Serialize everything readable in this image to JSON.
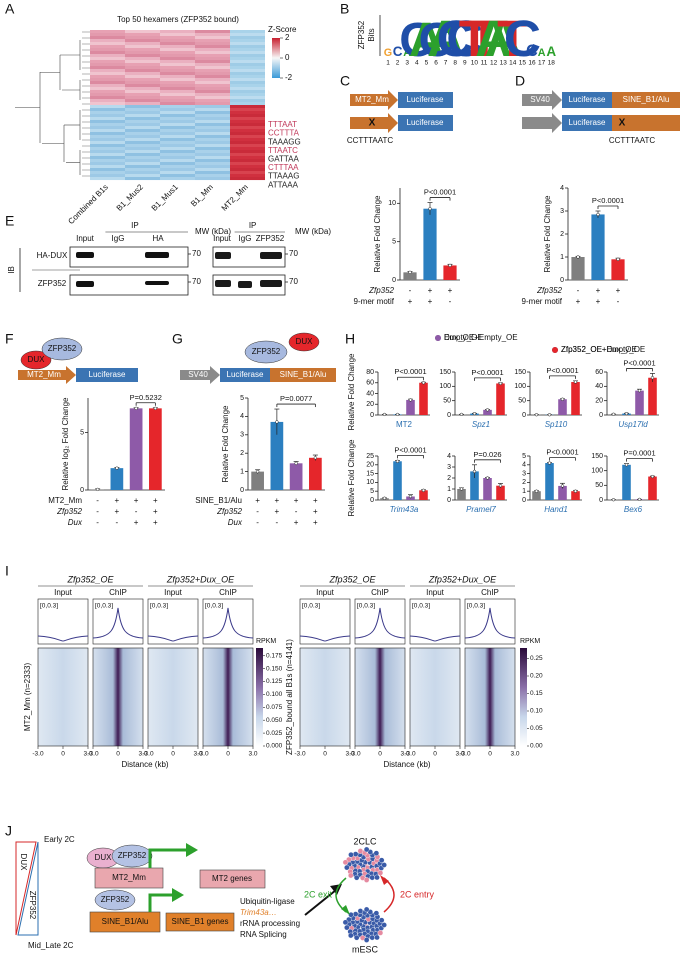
{
  "panel_labels": [
    "A",
    "B",
    "C",
    "D",
    "E",
    "F",
    "G",
    "H",
    "I",
    "J"
  ],
  "panel_a": {
    "title": "Top 50 hexamers (ZFP352 bound)",
    "scale_title": "Z-Score",
    "scale_ticks": [
      2,
      0,
      -2
    ],
    "columns": [
      "Combined B1s",
      "B1_Mus2",
      "B1_Mus1",
      "B1_Mm",
      "MT2_Mm"
    ],
    "hexamers": [
      {
        "text": "TTTAAT",
        "color": "#c0395a"
      },
      {
        "text": "CCTTTA",
        "color": "#c0395a"
      },
      {
        "text": "TAAAGG",
        "color": "#222222"
      },
      {
        "text": "TTAATC",
        "color": "#c0395a"
      },
      {
        "text": "GATTAA",
        "color": "#222222"
      },
      {
        "text": "CTTTAA",
        "color": "#c0395a"
      },
      {
        "text": "TTAAAG",
        "color": "#222222"
      },
      {
        "text": "ATTAAA",
        "color": "#222222"
      }
    ]
  },
  "panel_b": {
    "ylabel": "ZFP352",
    "unit": "Bits",
    "ylim": [
      0,
      2
    ],
    "letters": [
      "G",
      "C",
      "A",
      "C",
      "A",
      "C",
      "A",
      "C",
      "C",
      "T",
      "T",
      "A",
      "A",
      "T",
      "C",
      "C",
      "A",
      "A"
    ],
    "bits": [
      0.4,
      0.5,
      0.4,
      1.8,
      1.8,
      1.8,
      1.9,
      1.9,
      1.9,
      1.9,
      1.9,
      1.9,
      1.9,
      1.9,
      1.9,
      0.6,
      0.4,
      0.5
    ],
    "positions": [
      1,
      2,
      3,
      4,
      5,
      6,
      7,
      8,
      9,
      10,
      11,
      12,
      13,
      14,
      15,
      16,
      17,
      18
    ]
  },
  "panel_c": {
    "promoter": "MT2_Mm",
    "reporter": "Luciferase",
    "mutation": "X",
    "motif": "CCTTTAATC"
  },
  "panel_d": {
    "promoter": "SV40",
    "reporter": "Luciferase",
    "element": "SINE_B1/Alu",
    "mutation": "X",
    "motif": "CCTTTAATC"
  },
  "panel_e": {
    "side_label": "IB",
    "rows": [
      "HA-DUX",
      "ZFP352"
    ],
    "left": {
      "ip": "IP",
      "lanes": [
        "Input",
        "IgG",
        "HA"
      ],
      "mw": "MW (kDa)",
      "markers": [
        70,
        70
      ]
    },
    "right": {
      "ip": "IP",
      "lanes": [
        "Input",
        "IgG",
        "ZFP352"
      ],
      "mw": "MW (kDa)",
      "markers": [
        70,
        70
      ]
    }
  },
  "panel_f": {
    "factors": [
      "DUX",
      "ZFP352"
    ],
    "promoter": "MT2_Mm",
    "reporter": "Luciferase"
  },
  "panel_g": {
    "factors": [
      "ZFP352",
      "DUX"
    ],
    "promoter": "SV40",
    "reporter": "Luciferase",
    "element": "SINE_B1/Alu"
  },
  "panel_h": {
    "ylabel": "Relative Fold Change",
    "legend": [
      {
        "name": "Empty_OE",
        "color": "#7f7f7f"
      },
      {
        "name": "Zfp352_OE+Empty_OE",
        "color": "#2b7fc0"
      },
      {
        "name": "Dux_OE+Empty_OE",
        "color": "#8e5aa8"
      },
      {
        "name": "Zfp352_OE+Dux_OE",
        "color": "#e5262b"
      }
    ]
  },
  "panel_i": {
    "xlabel": "Distance (kb)",
    "unit": "RPKM",
    "track_range": "[0,0.3]",
    "xlim": [
      -3,
      3
    ],
    "xticks": [
      {
        "value": -3,
        "label": "-3.0"
      },
      0,
      {
        "value": 3,
        "label": "3.0"
      }
    ],
    "blocks": [
      {
        "conditions": [
          "Zfp352_OE",
          "Zfp352+Dux_OE"
        ],
        "tracks": [
          "Input",
          "ChIP",
          "Input",
          "ChIP"
        ],
        "ylabel": "MT2_Mm (n=2333)",
        "scale_lim": [
          0,
          0.19
        ],
        "scale_ticks": [
          {
            "value": 0,
            "label": "0.000"
          },
          0.025,
          {
            "value": 0.05,
            "label": "0.050"
          },
          0.075,
          {
            "value": 0.1,
            "label": "0.100"
          },
          0.125,
          {
            "value": 0.15,
            "label": "0.150"
          },
          0.175
        ]
      },
      {
        "conditions": [
          "Zfp352_OE",
          "Zfp352+Dux_OE"
        ],
        "tracks": [
          "Input",
          "ChIP",
          "Input",
          "ChIP"
        ],
        "ylabel": "ZFP352_bound all B1s (n=4141)",
        "scale_lim": [
          0,
          0.28
        ],
        "scale_ticks": [
          {
            "value": 0,
            "label": "0.00"
          },
          0.05,
          {
            "value": 0.1,
            "label": "0.10"
          },
          0.15,
          {
            "value": 0.2,
            "label": "0.20"
          },
          0.25
        ]
      }
    ]
  },
  "panel_j": {
    "early": "Early 2C",
    "late": "Mid_Late 2C",
    "gradient_labels": [
      "DUX",
      "ZFP352"
    ],
    "complex": [
      "DUX",
      "ZFP352"
    ],
    "mt2": "MT2_Mm",
    "mt2_genes": "MT2 genes",
    "factor": "ZFP352",
    "sine": "SINE_B1/Alu",
    "sine_genes": "SINE_B1 genes",
    "functions": [
      "Ubiquitin-ligase",
      "Trim43a…",
      "rRNA processing",
      "RNA Splicing"
    ],
    "states": [
      "2CLC",
      "mESC"
    ],
    "transitions": [
      "2C exit",
      "2C entry"
    ]
  },
  "chart_data": [
    {
      "type": "bar",
      "ylabel": "Relative Fold Change",
      "ylim": [
        0,
        12
      ],
      "yticks": [
        0,
        5,
        10
      ],
      "values": [
        1,
        9.3,
        1.9
      ],
      "errors": [
        0.1,
        0.8,
        0.15
      ],
      "colors": [
        "#7f7f7f",
        "#2b7fc0",
        "#e5262b"
      ],
      "pvalue": "P<0.0001",
      "bracket": [
        1,
        2
      ],
      "rows": [
        {
          "label": "Zfp352",
          "italic": true,
          "signs": [
            "-",
            "+",
            "+"
          ]
        },
        {
          "label": "9-mer motif",
          "italic": false,
          "signs": [
            "+",
            "+",
            "-"
          ]
        }
      ]
    },
    {
      "type": "bar",
      "ylabel": "Relative Fold Change",
      "ylim": [
        0,
        4
      ],
      "yticks": [
        0,
        1,
        2,
        3,
        4
      ],
      "values": [
        1,
        2.85,
        0.9
      ],
      "errors": [
        0.03,
        0.15,
        0.05
      ],
      "colors": [
        "#7f7f7f",
        "#2b7fc0",
        "#e5262b"
      ],
      "pvalue": "P<0.0001",
      "bracket": [
        1,
        2
      ],
      "rows": [
        {
          "label": "Zfp352",
          "italic": true,
          "signs": [
            "-",
            "+",
            "+"
          ]
        },
        {
          "label": "9-mer motif",
          "italic": false,
          "signs": [
            "+",
            "+",
            "-"
          ]
        }
      ]
    },
    {
      "type": "bar",
      "ylabel": "Relative log₂ Fold Change",
      "ylim": [
        0,
        8
      ],
      "yticks": [
        0,
        5
      ],
      "values": [
        0.05,
        1.9,
        7.1,
        7.1
      ],
      "errors": [
        0.05,
        0.05,
        0.05,
        0.05
      ],
      "colors": [
        "#7f7f7f",
        "#2b7fc0",
        "#8e5aa8",
        "#e5262b"
      ],
      "pvalue": "P=0.5232",
      "bracket": [
        2,
        3
      ],
      "rows": [
        {
          "label": "MT2_Mm",
          "italic": false,
          "signs": [
            "-",
            "+",
            "+",
            "+"
          ]
        },
        {
          "label": "Zfp352",
          "italic": true,
          "signs": [
            "-",
            "+",
            "-",
            "+"
          ]
        },
        {
          "label": "Dux",
          "italic": true,
          "signs": [
            "-",
            "-",
            "+",
            "+"
          ]
        }
      ]
    },
    {
      "type": "bar",
      "ylabel": "Relative Fold Change",
      "ylim": [
        0,
        5
      ],
      "yticks": [
        0,
        1,
        2,
        3,
        4,
        5
      ],
      "values": [
        1,
        3.7,
        1.45,
        1.75
      ],
      "errors": [
        0.1,
        0.7,
        0.1,
        0.15
      ],
      "colors": [
        "#7f7f7f",
        "#2b7fc0",
        "#8e5aa8",
        "#e5262b"
      ],
      "pvalue": "P=0.0077",
      "bracket": [
        1,
        3
      ],
      "rows": [
        {
          "label": "SINE_B1/Alu",
          "italic": false,
          "signs": [
            "+",
            "+",
            "+",
            "+"
          ]
        },
        {
          "label": "Zfp352",
          "italic": true,
          "signs": [
            "-",
            "+",
            "-",
            "+"
          ]
        },
        {
          "label": "Dux",
          "italic": true,
          "signs": [
            "-",
            "-",
            "+",
            "+"
          ]
        }
      ]
    },
    {
      "type": "bar",
      "title": "MT2",
      "italic": false,
      "ylim": [
        0,
        80
      ],
      "yticks": [
        0,
        20,
        40,
        60,
        80
      ],
      "values": [
        1,
        1,
        28,
        60
      ],
      "errors": [
        0.3,
        0.3,
        1.5,
        1
      ],
      "pvalue": "P<0.0001",
      "bracket": [
        1,
        3
      ]
    },
    {
      "type": "bar",
      "title": "Spz1",
      "italic": true,
      "ylim": [
        0,
        150
      ],
      "yticks": [
        0,
        50,
        100,
        150
      ],
      "values": [
        2,
        5,
        18,
        110
      ],
      "errors": [
        0.5,
        1,
        1.5,
        2
      ],
      "pvalue": "P<0.0001",
      "bracket": [
        1,
        3
      ]
    },
    {
      "type": "bar",
      "title": "Sp110",
      "italic": true,
      "ylim": [
        0,
        150
      ],
      "yticks": [
        0,
        50,
        100,
        150
      ],
      "values": [
        1,
        1,
        55,
        115
      ],
      "errors": [
        0.3,
        0.3,
        1.5,
        4
      ],
      "pvalue": "P<0.0001",
      "bracket": [
        1,
        3
      ]
    },
    {
      "type": "bar",
      "title": "Usp17ld",
      "italic": true,
      "ylim": [
        0,
        60
      ],
      "yticks": [
        0,
        20,
        40,
        60
      ],
      "values": [
        1,
        2,
        34,
        52
      ],
      "errors": [
        0.3,
        0.5,
        2,
        6
      ],
      "pvalue": "P<0.0001",
      "bracket": [
        1,
        3
      ]
    },
    {
      "type": "bar",
      "title": "Trim43a",
      "italic": true,
      "ylim": [
        0,
        25
      ],
      "yticks": [
        0,
        5,
        10,
        15,
        20,
        25
      ],
      "values": [
        1,
        22,
        2,
        5.5
      ],
      "errors": [
        0.2,
        0.5,
        1,
        0.3
      ],
      "pvalue": "P<0.0001",
      "bracket": [
        1,
        3
      ]
    },
    {
      "type": "bar",
      "title": "Pramel7",
      "italic": true,
      "ylim": [
        0,
        4
      ],
      "yticks": [
        0,
        1,
        2,
        3,
        4
      ],
      "values": [
        1,
        2.6,
        2,
        1.3
      ],
      "errors": [
        0.1,
        0.6,
        0.05,
        0.2
      ],
      "pvalue": "P=0.026",
      "bracket": [
        1,
        3
      ]
    },
    {
      "type": "bar",
      "title": "Hand1",
      "italic": true,
      "ylim": [
        0,
        5
      ],
      "yticks": [
        0,
        1,
        2,
        3,
        4,
        5
      ],
      "values": [
        1,
        4.2,
        1.6,
        1
      ],
      "errors": [
        0.05,
        0.05,
        0.3,
        0.1
      ],
      "pvalue": "P<0.0001",
      "bracket": [
        1,
        3
      ]
    },
    {
      "type": "bar",
      "title": "Bex6",
      "italic": true,
      "ylim": [
        0,
        150
      ],
      "yticks": [
        0,
        50,
        100,
        150
      ],
      "values": [
        1,
        120,
        2,
        80
      ],
      "errors": [
        0.3,
        4,
        0.5,
        1.5
      ],
      "pvalue": "P=0.0001",
      "bracket": [
        1,
        3
      ]
    }
  ]
}
